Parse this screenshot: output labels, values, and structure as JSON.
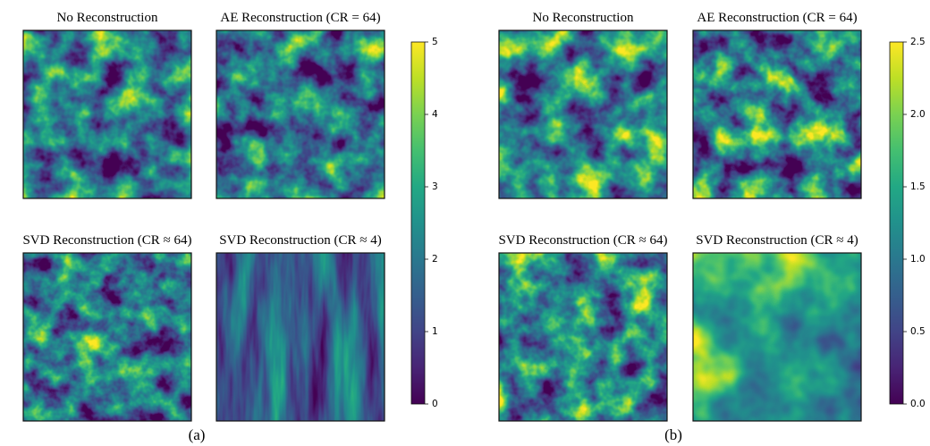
{
  "panels": [
    {
      "label": "(a)",
      "images": [
        {
          "title": "No Reconstruction"
        },
        {
          "title": "AE Reconstruction (CR = 64)"
        },
        {
          "title": "SVD Reconstruction (CR ≈ 64)"
        },
        {
          "title": "SVD Reconstruction (CR ≈ 4)"
        }
      ],
      "colorbar": {
        "range": [
          0,
          5
        ],
        "ticks": [
          0,
          1,
          2,
          3,
          4,
          5
        ]
      }
    },
    {
      "label": "(b)",
      "images": [
        {
          "title": "No Reconstruction"
        },
        {
          "title": "AE Reconstruction (CR = 64)"
        },
        {
          "title": "SVD Reconstruction (CR ≈ 64)"
        },
        {
          "title": "SVD Reconstruction (CR ≈ 4)"
        }
      ],
      "colorbar": {
        "range": [
          0,
          2.5
        ],
        "ticks": [
          {
            "value": 0,
            "label": "0.0"
          },
          0.5,
          {
            "value": 1,
            "label": "1.0"
          },
          1.5,
          {
            "value": 2,
            "label": "2.0"
          },
          2.5
        ]
      }
    }
  ]
}
